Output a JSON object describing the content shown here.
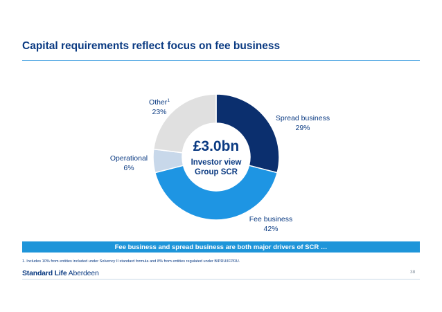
{
  "title": "Capital requirements reflect focus on fee business",
  "center": {
    "value": "£3.0bn",
    "line1": "Investor view",
    "line2": "Group SCR"
  },
  "banner": "Fee business and spread business are both major drivers of SCR …",
  "footnote": "1. Includes 10% from entities included under Solvency II standard formula and 8% from entities regulated under BIPRU/IFPRU.",
  "logo": {
    "part1": "Standard Life",
    "part2": "Aberdeen"
  },
  "page_number": "38",
  "colors": {
    "title": "#0a3a82",
    "rule": "#63b0e6",
    "banner": "#1e95d9"
  },
  "chart_data": {
    "type": "pie",
    "style": "donut",
    "start": "12 o'clock, clockwise",
    "total_label": "£3.0bn",
    "slices": [
      {
        "name": "Spread business",
        "value": 29,
        "label": "29%",
        "color": "#0b2f6e",
        "sup": ""
      },
      {
        "name": "Fee business",
        "value": 42,
        "label": "42%",
        "color": "#1e95e3",
        "sup": ""
      },
      {
        "name": "Operational",
        "value": 6,
        "label": "6%",
        "color": "#c8d8ea",
        "sup": ""
      },
      {
        "name": "Other",
        "value": 23,
        "label": "23%",
        "color": "#e0e0e0",
        "sup": "1"
      }
    ]
  }
}
